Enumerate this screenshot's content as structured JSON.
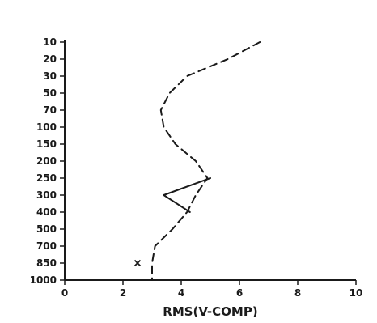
{
  "chart_data": {
    "type": "line",
    "xlabel": "RMS(V-COMP)",
    "ylabel": "",
    "xlim": [
      0,
      10
    ],
    "x_ticks": [
      "0",
      "2",
      "4",
      "6",
      "8",
      "10"
    ],
    "y_categories": [
      "10",
      "20",
      "30",
      "50",
      "70",
      "100",
      "150",
      "200",
      "250",
      "300",
      "400",
      "500",
      "700",
      "850",
      "1000"
    ],
    "y_inverted": true,
    "grid": false,
    "series": [
      {
        "style": "dashed",
        "points": [
          {
            "x": 6.7,
            "y": "10"
          },
          {
            "x": 5.6,
            "y": "20"
          },
          {
            "x": 4.2,
            "y": "30"
          },
          {
            "x": 3.6,
            "y": "50"
          },
          {
            "x": 3.3,
            "y": "70"
          },
          {
            "x": 3.4,
            "y": "100"
          },
          {
            "x": 3.8,
            "y": "150"
          },
          {
            "x": 4.5,
            "y": "200"
          },
          {
            "x": 4.9,
            "y": "250"
          },
          {
            "x": 4.5,
            "y": "300"
          },
          {
            "x": 4.2,
            "y": "400"
          },
          {
            "x": 3.7,
            "y": "500"
          },
          {
            "x": 3.1,
            "y": "700"
          },
          {
            "x": 3.0,
            "y": "850"
          },
          {
            "x": 3.0,
            "y": "1000"
          }
        ]
      },
      {
        "style": "solid",
        "points": [
          {
            "x": 5.0,
            "y": "250"
          },
          {
            "x": 3.4,
            "y": "300"
          },
          {
            "x": 4.3,
            "y": "400"
          }
        ]
      },
      {
        "style": "marker",
        "marker": "x",
        "points": [
          {
            "x": 2.5,
            "y": "850"
          }
        ]
      }
    ]
  }
}
